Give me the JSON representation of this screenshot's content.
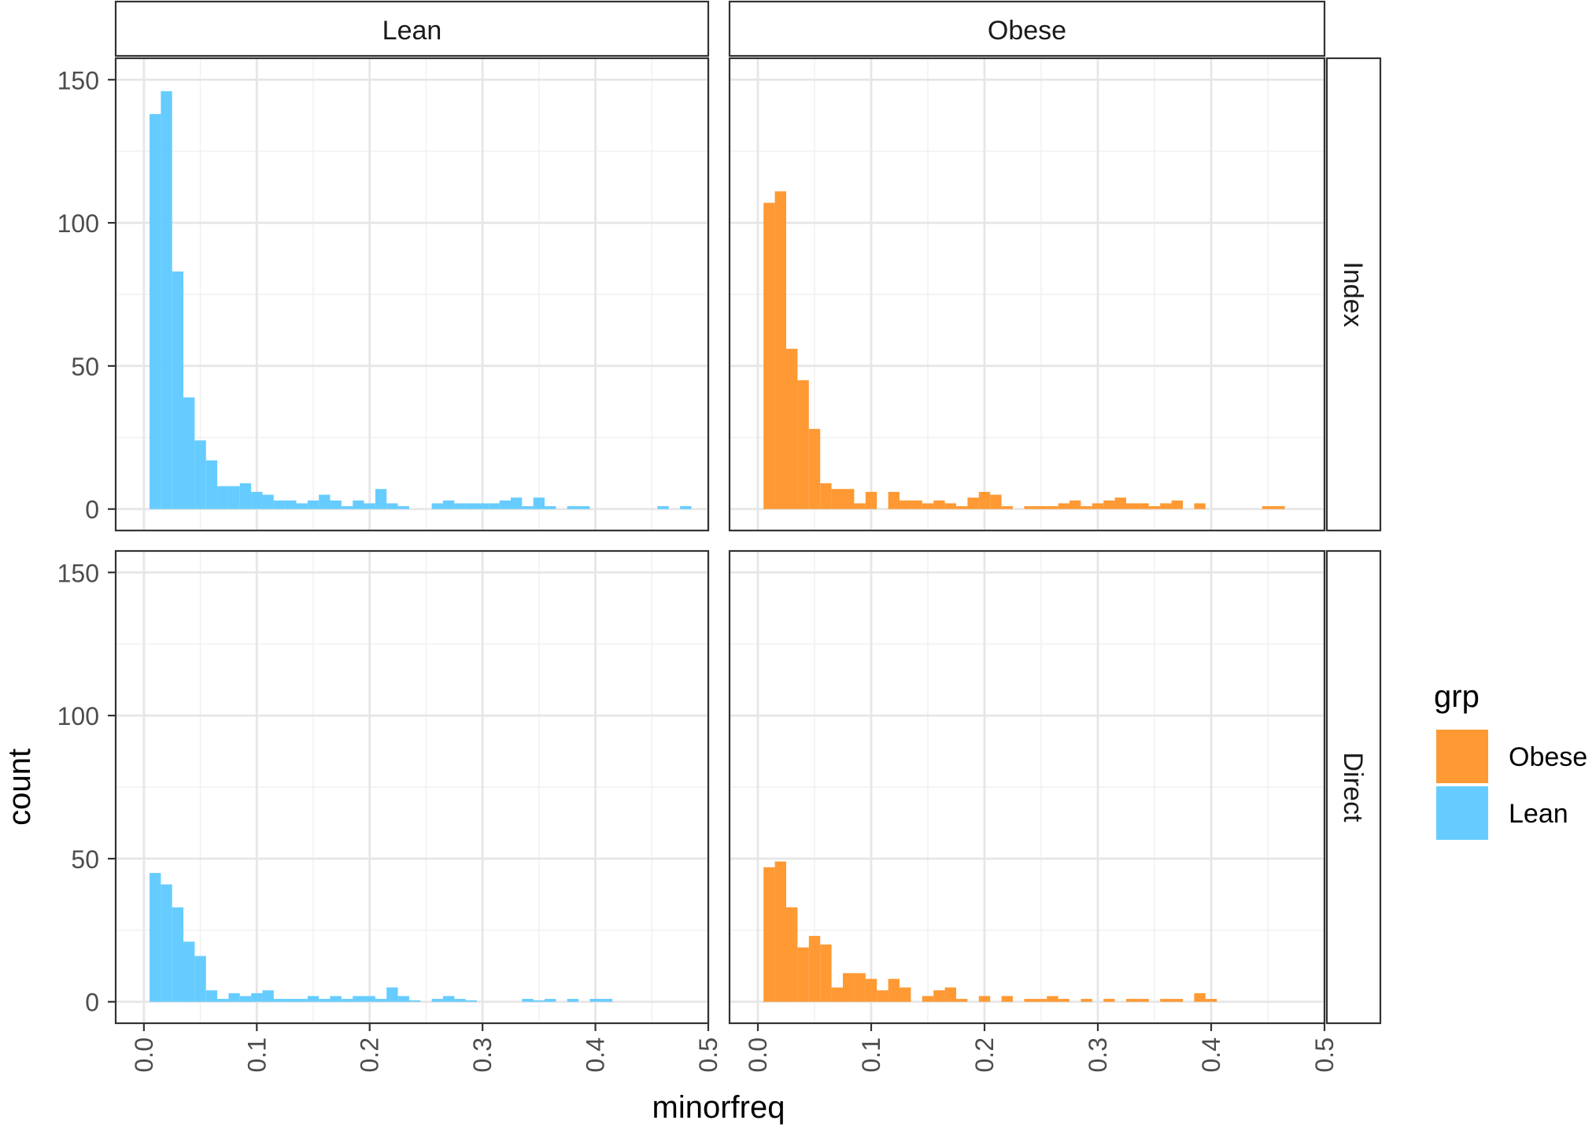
{
  "chart_data": {
    "type": "bar",
    "subtype": "faceted-histogram",
    "xlabel": "minorfreq",
    "ylabel": "count",
    "xlim": [
      0,
      0.5
    ],
    "ylim": [
      0,
      150
    ],
    "x_ticks": [
      "0.0",
      "0.1",
      "0.2",
      "0.3",
      "0.4",
      "0.5"
    ],
    "y_ticks": [
      "0",
      "50",
      "100",
      "150"
    ],
    "bin_width": 0.01,
    "grid": true,
    "legend": {
      "title": "grp",
      "position": "right",
      "entries": [
        {
          "label": "Obese",
          "color": "#FF9933"
        },
        {
          "label": "Lean",
          "color": "#66CCFF"
        }
      ]
    },
    "facet_columns": [
      "Lean",
      "Obese"
    ],
    "facet_rows": [
      "Index",
      "Direct"
    ],
    "panels": [
      {
        "col": "Lean",
        "row": "Index",
        "group": "Lean",
        "color": "#66CCFF",
        "bins": [
          [
            0.005,
            138
          ],
          [
            0.015,
            146
          ],
          [
            0.025,
            83
          ],
          [
            0.035,
            39
          ],
          [
            0.045,
            24
          ],
          [
            0.055,
            17
          ],
          [
            0.065,
            8
          ],
          [
            0.075,
            8
          ],
          [
            0.085,
            9
          ],
          [
            0.095,
            6
          ],
          [
            0.105,
            5
          ],
          [
            0.115,
            3
          ],
          [
            0.125,
            3
          ],
          [
            0.135,
            2
          ],
          [
            0.145,
            3
          ],
          [
            0.155,
            5
          ],
          [
            0.165,
            3
          ],
          [
            0.175,
            1
          ],
          [
            0.185,
            3
          ],
          [
            0.195,
            2
          ],
          [
            0.205,
            7
          ],
          [
            0.215,
            2
          ],
          [
            0.225,
            1
          ],
          [
            0.255,
            2
          ],
          [
            0.265,
            3
          ],
          [
            0.275,
            2
          ],
          [
            0.285,
            2
          ],
          [
            0.295,
            2
          ],
          [
            0.305,
            2
          ],
          [
            0.315,
            3
          ],
          [
            0.325,
            4
          ],
          [
            0.335,
            1
          ],
          [
            0.345,
            4
          ],
          [
            0.355,
            1
          ],
          [
            0.375,
            1
          ],
          [
            0.385,
            1
          ],
          [
            0.455,
            1
          ],
          [
            0.475,
            1
          ]
        ]
      },
      {
        "col": "Obese",
        "row": "Index",
        "group": "Obese",
        "color": "#FF9933",
        "bins": [
          [
            0.005,
            107
          ],
          [
            0.015,
            111
          ],
          [
            0.025,
            56
          ],
          [
            0.035,
            45
          ],
          [
            0.045,
            28
          ],
          [
            0.055,
            9
          ],
          [
            0.065,
            7
          ],
          [
            0.075,
            7
          ],
          [
            0.085,
            2
          ],
          [
            0.095,
            6
          ],
          [
            0.115,
            6
          ],
          [
            0.125,
            3
          ],
          [
            0.135,
            3
          ],
          [
            0.145,
            2
          ],
          [
            0.155,
            3
          ],
          [
            0.165,
            2
          ],
          [
            0.175,
            1
          ],
          [
            0.185,
            4
          ],
          [
            0.195,
            6
          ],
          [
            0.205,
            5
          ],
          [
            0.215,
            1
          ],
          [
            0.235,
            1
          ],
          [
            0.245,
            1
          ],
          [
            0.255,
            1
          ],
          [
            0.265,
            2
          ],
          [
            0.275,
            3
          ],
          [
            0.285,
            1
          ],
          [
            0.295,
            2
          ],
          [
            0.305,
            3
          ],
          [
            0.315,
            4
          ],
          [
            0.325,
            2
          ],
          [
            0.335,
            2
          ],
          [
            0.345,
            1
          ],
          [
            0.355,
            2
          ],
          [
            0.365,
            3
          ],
          [
            0.385,
            2
          ],
          [
            0.445,
            1
          ],
          [
            0.455,
            1
          ]
        ]
      },
      {
        "col": "Lean",
        "row": "Direct",
        "group": "Lean",
        "color": "#66CCFF",
        "bins": [
          [
            0.005,
            45
          ],
          [
            0.015,
            41
          ],
          [
            0.025,
            33
          ],
          [
            0.035,
            21
          ],
          [
            0.045,
            16
          ],
          [
            0.055,
            4
          ],
          [
            0.065,
            1
          ],
          [
            0.075,
            3
          ],
          [
            0.085,
            2
          ],
          [
            0.095,
            3
          ],
          [
            0.105,
            4
          ],
          [
            0.115,
            1
          ],
          [
            0.125,
            1
          ],
          [
            0.135,
            1
          ],
          [
            0.145,
            2
          ],
          [
            0.155,
            1
          ],
          [
            0.165,
            2
          ],
          [
            0.175,
            1
          ],
          [
            0.185,
            2
          ],
          [
            0.195,
            2
          ],
          [
            0.205,
            1
          ],
          [
            0.215,
            5
          ],
          [
            0.225,
            2
          ],
          [
            0.235,
            0.5
          ],
          [
            0.255,
            1
          ],
          [
            0.265,
            2
          ],
          [
            0.275,
            1
          ],
          [
            0.285,
            0.5
          ],
          [
            0.335,
            1
          ],
          [
            0.345,
            0.5
          ],
          [
            0.355,
            1
          ],
          [
            0.375,
            1
          ],
          [
            0.395,
            1
          ],
          [
            0.405,
            1
          ]
        ]
      },
      {
        "col": "Obese",
        "row": "Direct",
        "group": "Obese",
        "color": "#FF9933",
        "bins": [
          [
            0.005,
            47
          ],
          [
            0.015,
            49
          ],
          [
            0.025,
            33
          ],
          [
            0.035,
            19
          ],
          [
            0.045,
            23
          ],
          [
            0.055,
            20
          ],
          [
            0.065,
            5
          ],
          [
            0.075,
            10
          ],
          [
            0.085,
            10
          ],
          [
            0.095,
            8
          ],
          [
            0.105,
            4
          ],
          [
            0.115,
            8
          ],
          [
            0.125,
            5
          ],
          [
            0.145,
            2
          ],
          [
            0.155,
            4
          ],
          [
            0.165,
            5
          ],
          [
            0.175,
            1
          ],
          [
            0.195,
            2
          ],
          [
            0.215,
            2
          ],
          [
            0.235,
            1
          ],
          [
            0.245,
            1
          ],
          [
            0.255,
            2
          ],
          [
            0.265,
            1
          ],
          [
            0.285,
            1
          ],
          [
            0.305,
            1
          ],
          [
            0.325,
            1
          ],
          [
            0.335,
            1
          ],
          [
            0.355,
            1
          ],
          [
            0.365,
            1
          ],
          [
            0.385,
            3
          ],
          [
            0.395,
            1
          ]
        ]
      }
    ]
  }
}
